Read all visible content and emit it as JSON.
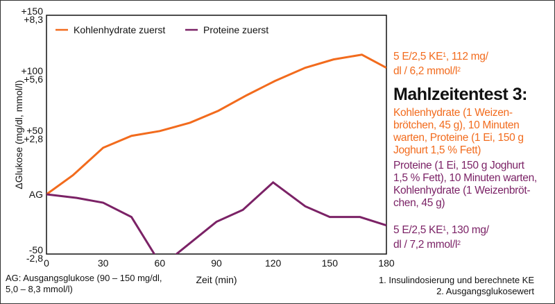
{
  "chart_data": {
    "type": "line",
    "xlabel": "Zeit (min)",
    "ylabel": "ΔGlukose (mg/dl, mmol/l)",
    "xlim": [
      0,
      180
    ],
    "ylim": [
      -50,
      150
    ],
    "x_ticks": [
      "0",
      "30",
      "60",
      "90",
      "120",
      "150",
      "180"
    ],
    "y_ticks": [
      {
        "value": 150,
        "label1": "+150",
        "label2": "+8,3"
      },
      {
        "value": 100,
        "label1": "+100",
        "label2": "+5,6"
      },
      {
        "value": 50,
        "label1": "+50",
        "label2": "+2,8"
      },
      {
        "value": 0,
        "label1": "AG",
        "label2": ""
      },
      {
        "value": -50,
        "label1": "-50",
        "label2": "-2,8"
      }
    ],
    "legend_position": "top-left",
    "series": [
      {
        "name": "Kohlenhydrate zuerst",
        "color": "#f26b1d",
        "points": [
          [
            0,
            0
          ],
          [
            14,
            16
          ],
          [
            30,
            39
          ],
          [
            45,
            49
          ],
          [
            60,
            53
          ],
          [
            76,
            60
          ],
          [
            91,
            70
          ],
          [
            106,
            83
          ],
          [
            121,
            95
          ],
          [
            137,
            106
          ],
          [
            152,
            113
          ],
          [
            167,
            117
          ],
          [
            180,
            106
          ]
        ]
      },
      {
        "name": "Proteine zuerst",
        "color": "#7b2266",
        "points": [
          [
            0,
            0
          ],
          [
            16,
            -3
          ],
          [
            30,
            -7
          ],
          [
            45,
            -19
          ],
          [
            61,
            -60
          ],
          [
            90,
            -23
          ],
          [
            104,
            -13
          ],
          [
            120,
            10
          ],
          [
            137,
            -10
          ],
          [
            150,
            -19
          ],
          [
            166,
            -19
          ],
          [
            180,
            -26
          ]
        ]
      }
    ]
  },
  "annotations": {
    "orange_end": [
      "5 E/2,5 KE",
      "1",
      ", 112 mg/",
      "dl / 6,2 mmol/l",
      "2"
    ],
    "purple_end": [
      "5 E/2,5 KE",
      "1",
      ", 130 mg/",
      "dl / 7,2 mmol/l",
      "2"
    ],
    "title": "Mahlzeitentest 3:",
    "orange_desc": [
      "Kohlenhydrate (1 Weizen-",
      "brötchen, 45 g), 10 Minuten",
      "warten, Proteine (1 Ei, 150 g",
      "Joghurt 1,5 % Fett)"
    ],
    "purple_desc": [
      "Proteine (1 Ei, 150 g Joghurt",
      "1,5 % Fett), 10 Minuten warten,",
      "Kohlenhydrate (1 Weizenbröt-",
      "chen, 45 g)"
    ]
  },
  "footnotes": {
    "ag": [
      "AG: Ausgangsglukose (90 – 150 mg/dl,",
      "5,0 – 8,3 mmol/l)"
    ],
    "notes": [
      "1. Insulindosierung und berechnete KE",
      "2. Ausgangsglukosewert"
    ]
  }
}
